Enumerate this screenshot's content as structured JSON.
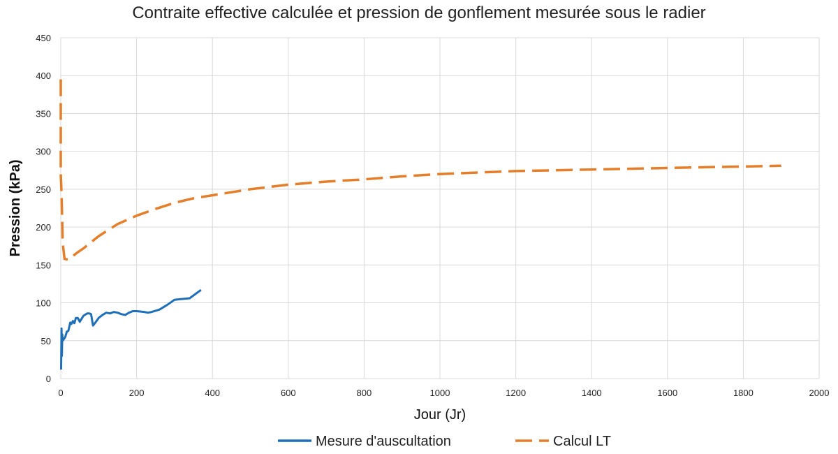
{
  "chart_data": {
    "type": "line",
    "title": "Contraite effective calculée et pression de gonflement mesurée sous le radier",
    "xlabel": "Jour (Jr)",
    "ylabel": "Pression (kPa)",
    "xlim": [
      0,
      2000
    ],
    "ylim": [
      0,
      450
    ],
    "xticks": [
      0,
      200,
      400,
      600,
      800,
      1000,
      1200,
      1400,
      1600,
      1800,
      2000
    ],
    "yticks": [
      0,
      50,
      100,
      150,
      200,
      250,
      300,
      350,
      400,
      450
    ],
    "grid": true,
    "legend": "bottom",
    "series": [
      {
        "name": "Mesure d'auscultation",
        "color": "#1f6fb8",
        "style": "solid",
        "x": [
          1,
          2,
          3,
          4,
          5,
          8,
          12,
          16,
          20,
          25,
          28,
          32,
          36,
          40,
          45,
          50,
          55,
          60,
          70,
          75,
          80,
          85,
          90,
          100,
          110,
          120,
          130,
          140,
          150,
          160,
          170,
          180,
          190,
          200,
          220,
          230,
          240,
          260,
          280,
          300,
          340,
          370
        ],
        "y": [
          12,
          66,
          30,
          58,
          50,
          52,
          55,
          62,
          63,
          74,
          72,
          76,
          73,
          80,
          80,
          75,
          79,
          83,
          86,
          86,
          85,
          70,
          73,
          80,
          84,
          87,
          86,
          88,
          87,
          85,
          84,
          87,
          89,
          89,
          88,
          87,
          88,
          91,
          97,
          104,
          106,
          117
        ]
      },
      {
        "name": "Calcul LT",
        "color": "#e57e2a",
        "style": "dashed",
        "x": [
          0,
          0,
          0,
          0,
          0,
          2,
          3,
          4,
          5,
          10,
          20,
          40,
          60,
          80,
          100,
          150,
          200,
          250,
          300,
          350,
          400,
          500,
          600,
          700,
          800,
          900,
          1000,
          1100,
          1200,
          1300,
          1400,
          1500,
          1600,
          1700,
          1800,
          1900
        ],
        "y": [
          395,
          360,
          330,
          300,
          270,
          245,
          225,
          205,
          180,
          158,
          157,
          165,
          172,
          180,
          188,
          204,
          215,
          224,
          232,
          238,
          242,
          250,
          256,
          260,
          263,
          267,
          270,
          272,
          274,
          275,
          276,
          277,
          278,
          279,
          280,
          281
        ]
      }
    ]
  }
}
